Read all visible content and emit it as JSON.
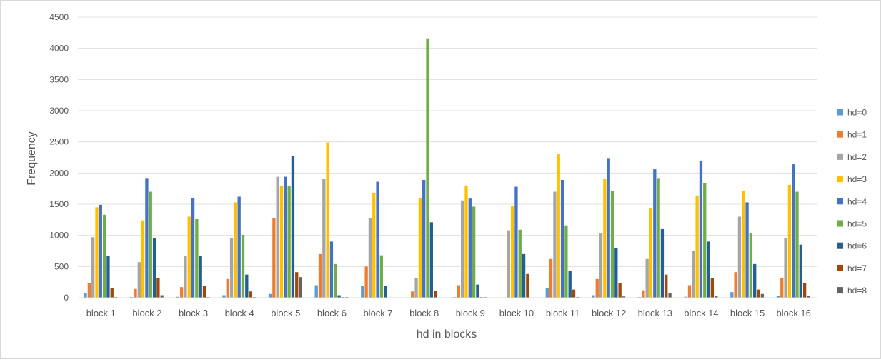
{
  "chart_data": {
    "type": "bar",
    "title": "",
    "xlabel": "hd in blocks",
    "ylabel": "Frequency",
    "ylim": [
      0,
      4500
    ],
    "yticks": [
      0,
      500,
      1000,
      1500,
      2000,
      2500,
      3000,
      3500,
      4000,
      4500
    ],
    "grid": true,
    "legend_position": "right",
    "categories": [
      "block 1",
      "block 2",
      "block 3",
      "block 4",
      "block 5",
      "block 6",
      "block 7",
      "block 8",
      "block 9",
      "block 10",
      "block 11",
      "block 12",
      "block 13",
      "block 14",
      "block 15",
      "block 16"
    ],
    "series": [
      {
        "name": "hd=0",
        "color": "#5b9bd5",
        "values": [
          80,
          10,
          15,
          40,
          60,
          200,
          190,
          5,
          10,
          5,
          160,
          40,
          10,
          15,
          90,
          30
        ]
      },
      {
        "name": "hd=1",
        "color": "#ed7d31",
        "values": [
          240,
          140,
          170,
          300,
          1280,
          700,
          500,
          100,
          200,
          5,
          620,
          300,
          120,
          200,
          410,
          310
        ]
      },
      {
        "name": "hd=2",
        "color": "#a5a5a5",
        "values": [
          970,
          570,
          670,
          950,
          1940,
          1910,
          1280,
          320,
          1560,
          1080,
          1700,
          1030,
          620,
          750,
          1300,
          960
        ]
      },
      {
        "name": "hd=3",
        "color": "#ffc000",
        "values": [
          1450,
          1240,
          1300,
          1530,
          1790,
          2490,
          1680,
          1600,
          1800,
          1470,
          2300,
          1910,
          1430,
          1640,
          1720,
          1810
        ]
      },
      {
        "name": "hd=4",
        "color": "#4472c4",
        "values": [
          1490,
          1920,
          1600,
          1620,
          1940,
          900,
          1860,
          1890,
          1590,
          1780,
          1890,
          2240,
          2060,
          2200,
          1530,
          2140
        ]
      },
      {
        "name": "hd=5",
        "color": "#70ad47",
        "values": [
          1330,
          1700,
          1260,
          1010,
          1790,
          540,
          680,
          4160,
          1460,
          1090,
          1160,
          1710,
          1920,
          1840,
          1030,
          1700
        ]
      },
      {
        "name": "hd=6",
        "color": "#255e91",
        "values": [
          670,
          950,
          670,
          370,
          2270,
          40,
          190,
          1210,
          210,
          700,
          430,
          790,
          1100,
          900,
          540,
          850
        ]
      },
      {
        "name": "hd=7",
        "color": "#9e480e",
        "values": [
          160,
          310,
          190,
          100,
          410,
          10,
          5,
          110,
          10,
          380,
          130,
          240,
          370,
          320,
          130,
          240
        ]
      },
      {
        "name": "hd=8",
        "color": "#636363",
        "values": [
          10,
          40,
          10,
          10,
          330,
          10,
          5,
          5,
          10,
          5,
          10,
          20,
          70,
          30,
          60,
          30
        ]
      }
    ]
  }
}
